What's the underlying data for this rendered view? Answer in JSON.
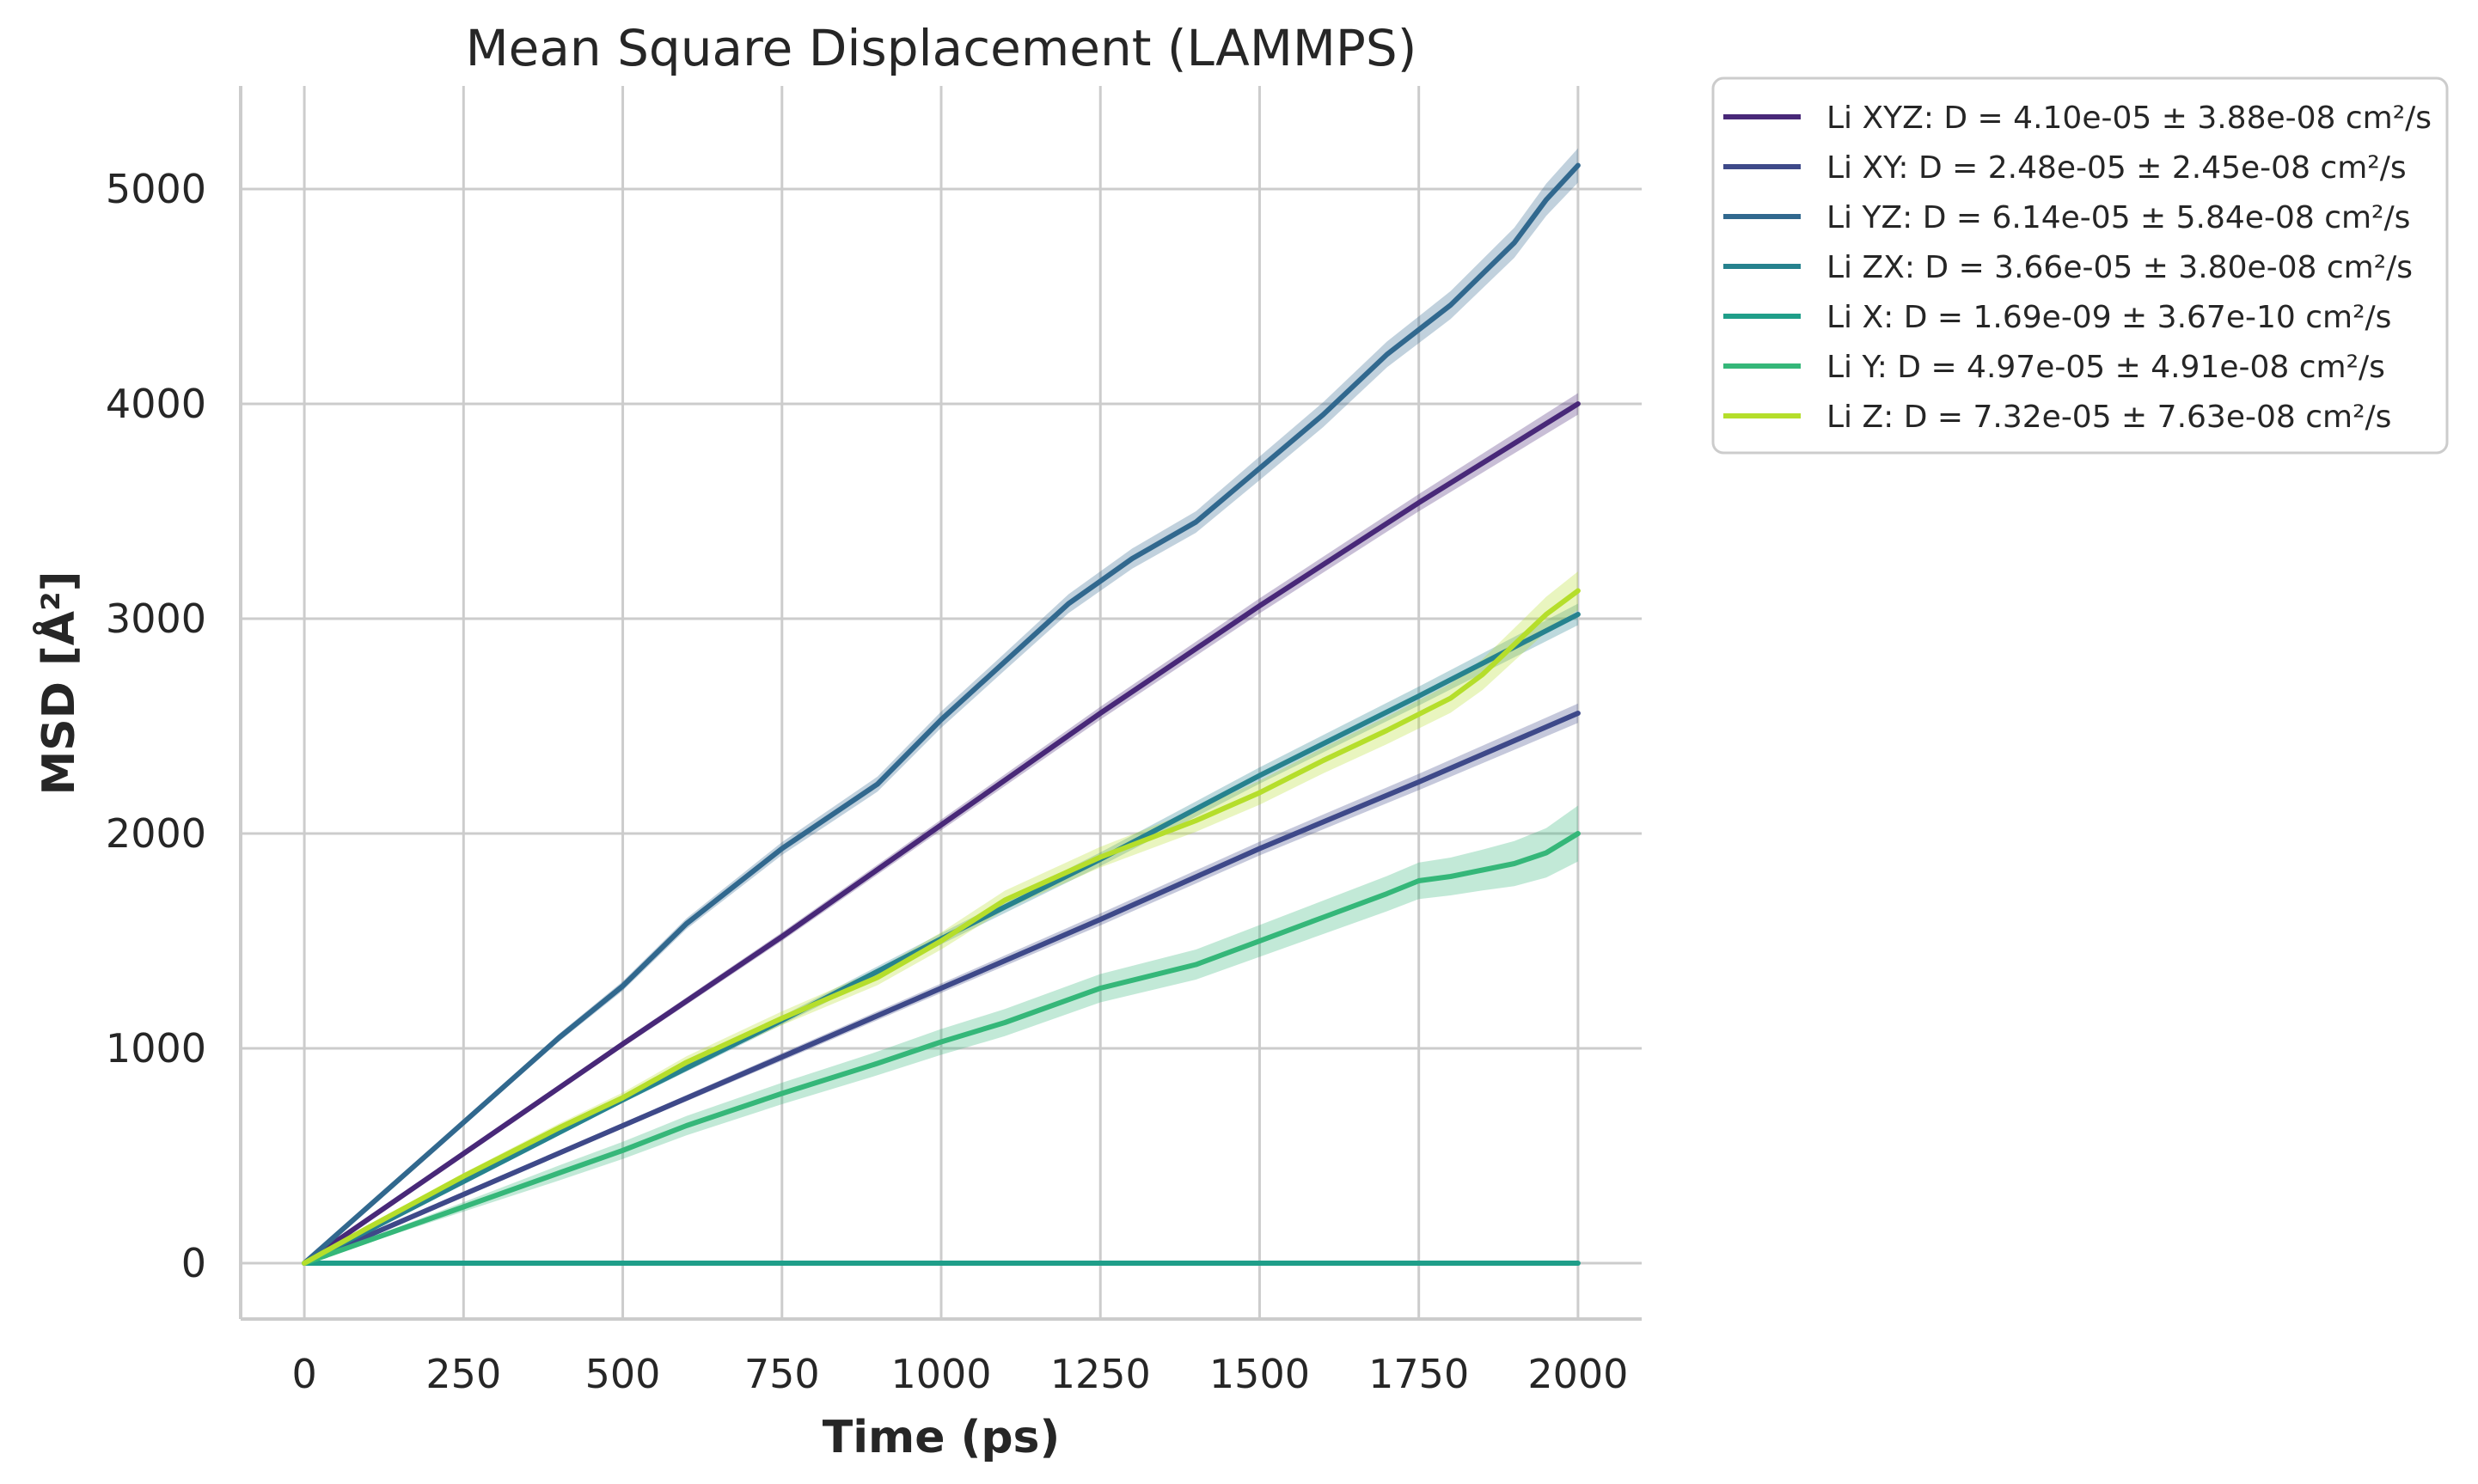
{
  "chart_data": {
    "type": "line",
    "title": "Mean Square Displacement (LAMMPS)",
    "xlabel": "Time (ps)",
    "ylabel": "MSD [Å²]",
    "xlim": [
      -100,
      2100
    ],
    "ylim": [
      -260,
      5480
    ],
    "xticks": [
      0,
      250,
      500,
      750,
      1000,
      1250,
      1500,
      1750,
      2000
    ],
    "yticks": [
      0,
      1000,
      2000,
      3000,
      4000,
      5000
    ],
    "xtick_labels": [
      "0",
      "250",
      "500",
      "750",
      "1000",
      "1250",
      "1500",
      "1750",
      "2000"
    ],
    "ytick_labels": [
      "0",
      "1000",
      "2000",
      "3000",
      "4000",
      "5000"
    ],
    "grid": true,
    "legend_position": "outside-upper-right",
    "series": [
      {
        "name": "Li XYZ: D = 4.10e-05 ± 3.88e-08 cm²/s",
        "color": "#482878",
        "x": [
          0,
          250,
          500,
          750,
          1000,
          1250,
          1500,
          1750,
          2000
        ],
        "y": [
          0,
          510,
          1020,
          1520,
          2040,
          2560,
          3060,
          3540,
          4000
        ],
        "band": [
          0,
          8,
          15,
          20,
          25,
          30,
          35,
          40,
          50
        ]
      },
      {
        "name": "Li XY: D = 2.48e-05 ± 2.45e-08 cm²/s",
        "color": "#3e4989",
        "x": [
          0,
          250,
          500,
          750,
          1000,
          1250,
          1500,
          1750,
          2000
        ],
        "y": [
          0,
          320,
          640,
          960,
          1280,
          1600,
          1930,
          2240,
          2560
        ],
        "band": [
          0,
          6,
          12,
          18,
          22,
          28,
          32,
          38,
          45
        ]
      },
      {
        "name": "Li YZ: D = 6.14e-05 ± 5.84e-08 cm²/s",
        "color": "#31688e",
        "x": [
          0,
          100,
          250,
          400,
          500,
          600,
          750,
          900,
          1000,
          1100,
          1200,
          1300,
          1400,
          1500,
          1600,
          1700,
          1800,
          1900,
          1950,
          2000
        ],
        "y": [
          0,
          262,
          655,
          1050,
          1290,
          1580,
          1930,
          2230,
          2530,
          2800,
          3070,
          3280,
          3450,
          3700,
          3950,
          4230,
          4460,
          4750,
          4950,
          5110
        ],
        "band": [
          0,
          6,
          12,
          18,
          22,
          25,
          30,
          35,
          38,
          40,
          44,
          47,
          50,
          55,
          58,
          60,
          65,
          70,
          75,
          80
        ]
      },
      {
        "name": "Li ZX: D = 3.66e-05 ± 3.80e-08 cm²/s",
        "color": "#26828e",
        "x": [
          0,
          250,
          500,
          750,
          1000,
          1250,
          1500,
          1750,
          2000
        ],
        "y": [
          0,
          380,
          760,
          1130,
          1510,
          1880,
          2270,
          2640,
          3020
        ],
        "band": [
          0,
          8,
          14,
          20,
          26,
          32,
          38,
          44,
          50
        ]
      },
      {
        "name": "Li X: D = 1.69e-09 ± 3.67e-10 cm²/s",
        "color": "#1f9e89",
        "x": [
          0,
          500,
          1000,
          1500,
          2000
        ],
        "y": [
          0,
          0,
          0,
          0,
          0
        ],
        "band": [
          0,
          2,
          3,
          4,
          5
        ]
      },
      {
        "name": "Li Y: D = 4.97e-05 ± 4.91e-08 cm²/s",
        "color": "#35b779",
        "x": [
          0,
          100,
          250,
          400,
          500,
          600,
          750,
          900,
          1000,
          1100,
          1250,
          1400,
          1500,
          1600,
          1700,
          1750,
          1800,
          1850,
          1900,
          1950,
          2000
        ],
        "y": [
          0,
          105,
          262,
          420,
          525,
          640,
          790,
          930,
          1030,
          1120,
          1280,
          1390,
          1500,
          1610,
          1720,
          1780,
          1800,
          1830,
          1860,
          1910,
          2000
        ],
        "band": [
          0,
          10,
          22,
          35,
          40,
          45,
          50,
          55,
          60,
          63,
          66,
          70,
          74,
          78,
          82,
          85,
          88,
          95,
          105,
          115,
          130
        ]
      },
      {
        "name": "Li Z: D = 7.32e-05 ± 7.63e-08 cm²/s",
        "color": "#b5de2b",
        "x": [
          0,
          100,
          250,
          400,
          500,
          600,
          750,
          900,
          1000,
          1100,
          1250,
          1400,
          1500,
          1600,
          1700,
          1800,
          1850,
          1900,
          1950,
          2000
        ],
        "y": [
          0,
          165,
          405,
          630,
          770,
          935,
          1140,
          1330,
          1500,
          1690,
          1890,
          2060,
          2190,
          2340,
          2480,
          2630,
          2740,
          2880,
          3020,
          3130
        ],
        "band": [
          0,
          8,
          14,
          20,
          24,
          28,
          32,
          36,
          40,
          44,
          48,
          52,
          56,
          60,
          64,
          68,
          72,
          76,
          82,
          90
        ]
      }
    ]
  }
}
